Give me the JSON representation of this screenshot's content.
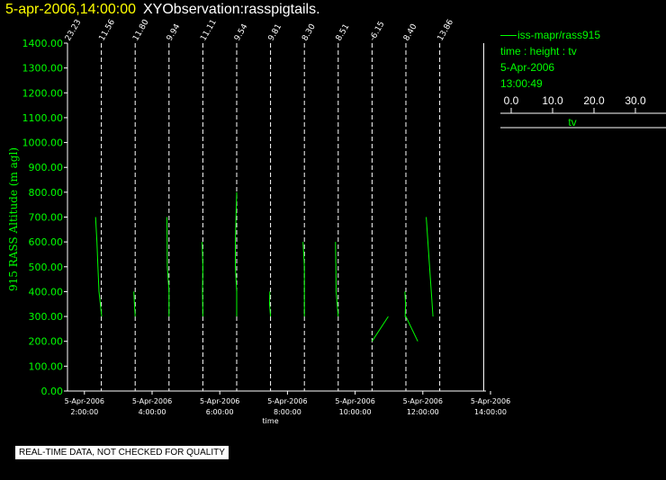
{
  "header": {
    "date_time": "5-apr-2006,14:00:00",
    "observation": "XYObservation:rasspigtails."
  },
  "legend": {
    "series_label": "iss-mapr/rass915",
    "line2": "time : height : tv",
    "line3": "5-Apr-2006",
    "line4": "13:00:49",
    "scale_ticks": [
      "0.0",
      "10.0",
      "20.0",
      "30.0"
    ],
    "scale_label": "tv"
  },
  "note": "REAL-TIME DATA, NOT CHECKED FOR QUALITY",
  "colors": {
    "series": "#00ff00",
    "axis": "#ffffff",
    "title_date": "#ffff00",
    "ylabel": "#00ff00"
  },
  "chart_data": {
    "type": "line",
    "xlabel": "time",
    "ylabel": "915 RASS Altitude (m agl)",
    "ylim": [
      0,
      1400
    ],
    "y_ticks": [
      "0.00",
      "100.00",
      "200.00",
      "300.00",
      "400.00",
      "500.00",
      "600.00",
      "700.00",
      "800.00",
      "900.00",
      "1000.00",
      "1100.00",
      "1200.00",
      "1300.00",
      "1400.00"
    ],
    "x_ticks": [
      {
        "hour": 2,
        "date": "5-Apr-2006",
        "time": "2:00:00"
      },
      {
        "hour": 4,
        "date": "5-Apr-2006",
        "time": "4:00:00"
      },
      {
        "hour": 6,
        "date": "5-Apr-2006",
        "time": "6:00:00"
      },
      {
        "hour": 8,
        "date": "5-Apr-2006",
        "time": "8:00:00"
      },
      {
        "hour": 10,
        "date": "5-Apr-2006",
        "time": "10:00:00"
      },
      {
        "hour": 12,
        "date": "5-Apr-2006",
        "time": "12:00:00"
      },
      {
        "hour": 14,
        "date": "5-Apr-2006",
        "time": "14:00:00"
      }
    ],
    "x_range_hours": [
      1.5,
      14.0
    ],
    "profiles": [
      {
        "time_hour": 1.5,
        "label": "23.23",
        "points": []
      },
      {
        "time_hour": 2.5,
        "label": "11.56",
        "points": [
          [
            -1.7,
            700
          ],
          [
            -1.3,
            600
          ],
          [
            -1.0,
            500
          ],
          [
            -0.7,
            400
          ],
          [
            0.1,
            300
          ]
        ]
      },
      {
        "time_hour": 3.5,
        "label": "11.80",
        "points": [
          [
            -0.4,
            400
          ],
          [
            -0.2,
            350
          ],
          [
            0.0,
            300
          ]
        ]
      },
      {
        "time_hour": 4.5,
        "label": "9.94",
        "points": [
          [
            -0.6,
            700
          ],
          [
            -0.5,
            500
          ],
          [
            0.0,
            400
          ],
          [
            0.0,
            300
          ]
        ]
      },
      {
        "time_hour": 5.5,
        "label": "11.11",
        "points": [
          [
            -0.2,
            600
          ],
          [
            0.0,
            500
          ],
          [
            -0.1,
            400
          ],
          [
            0.0,
            300
          ]
        ]
      },
      {
        "time_hour": 6.5,
        "label": "9.54",
        "points": [
          [
            0.0,
            800
          ],
          [
            -0.2,
            700
          ],
          [
            -0.4,
            600
          ],
          [
            -0.4,
            500
          ],
          [
            0.0,
            400
          ],
          [
            0.0,
            300
          ]
        ]
      },
      {
        "time_hour": 7.5,
        "label": "9.81",
        "points": [
          [
            -0.2,
            400
          ],
          [
            -0.3,
            350
          ],
          [
            0.0,
            300
          ]
        ]
      },
      {
        "time_hour": 8.5,
        "label": "8.30",
        "points": [
          [
            -0.4,
            600
          ],
          [
            0.0,
            500
          ],
          [
            0.0,
            400
          ],
          [
            0.0,
            300
          ]
        ]
      },
      {
        "time_hour": 9.5,
        "label": "8.51",
        "points": [
          [
            -0.8,
            600
          ],
          [
            -0.7,
            500
          ],
          [
            -0.6,
            400
          ],
          [
            0.0,
            300
          ]
        ]
      },
      {
        "time_hour": 10.5,
        "label": "-6.15",
        "points": [
          [
            0.0,
            200
          ],
          [
            4.8,
            300
          ]
        ]
      },
      {
        "time_hour": 11.5,
        "label": "8.40",
        "points": [
          [
            -0.3,
            400
          ],
          [
            -0.1,
            350
          ],
          [
            -0.2,
            300
          ],
          [
            0.0,
            300
          ],
          [
            3.5,
            200
          ]
        ]
      },
      {
        "time_hour": 12.5,
        "label": "13.86",
        "points": [
          [
            -4.0,
            700
          ],
          [
            -3.0,
            500
          ],
          [
            -2.0,
            300
          ]
        ]
      }
    ]
  }
}
